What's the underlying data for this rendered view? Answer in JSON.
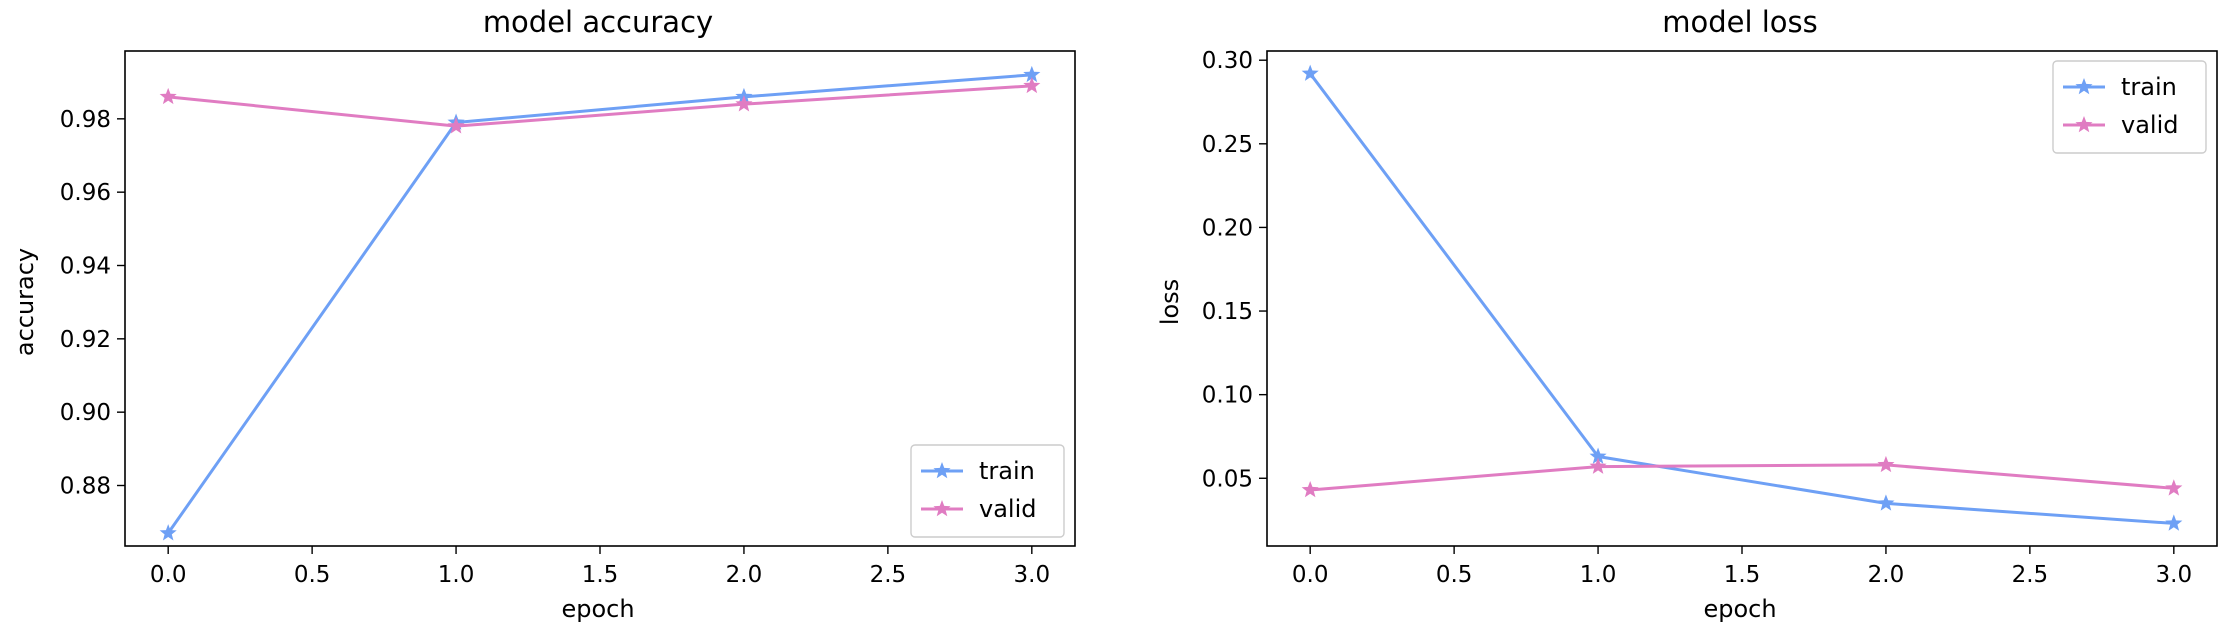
{
  "chart_data": [
    {
      "type": "line",
      "title": "model accuracy",
      "xlabel": "epoch",
      "ylabel": "accuracy",
      "x": [
        0,
        1,
        2,
        3
      ],
      "xlim": [
        -0.15,
        3.15
      ],
      "ylim": [
        0.8635,
        0.9985
      ],
      "xticks": [
        0.0,
        0.5,
        1.0,
        1.5,
        2.0,
        2.5,
        3.0
      ],
      "xtick_labels": [
        "0.0",
        "0.5",
        "1.0",
        "1.5",
        "2.0",
        "2.5",
        "3.0"
      ],
      "yticks": [
        0.88,
        0.9,
        0.92,
        0.94,
        0.96,
        0.98
      ],
      "ytick_labels": [
        "0.88",
        "0.90",
        "0.92",
        "0.94",
        "0.96",
        "0.98"
      ],
      "grid": false,
      "legend_position": "lower right",
      "series": [
        {
          "name": "train",
          "values": [
            0.867,
            0.979,
            0.986,
            0.992
          ],
          "color": "#6ea0f5",
          "marker": "star"
        },
        {
          "name": "valid",
          "values": [
            0.986,
            0.978,
            0.984,
            0.989
          ],
          "color": "#e07cc2",
          "marker": "star"
        }
      ]
    },
    {
      "type": "line",
      "title": "model loss",
      "xlabel": "epoch",
      "ylabel": "loss",
      "x": [
        0,
        1,
        2,
        3
      ],
      "xlim": [
        -0.15,
        3.15
      ],
      "ylim": [
        0.0095,
        0.3055
      ],
      "xticks": [
        0.0,
        0.5,
        1.0,
        1.5,
        2.0,
        2.5,
        3.0
      ],
      "xtick_labels": [
        "0.0",
        "0.5",
        "1.0",
        "1.5",
        "2.0",
        "2.5",
        "3.0"
      ],
      "yticks": [
        0.05,
        0.1,
        0.15,
        0.2,
        0.25,
        0.3
      ],
      "ytick_labels": [
        "0.05",
        "0.10",
        "0.15",
        "0.20",
        "0.25",
        "0.30"
      ],
      "grid": false,
      "legend_position": "upper right",
      "series": [
        {
          "name": "train",
          "values": [
            0.292,
            0.063,
            0.035,
            0.023
          ],
          "color": "#6ea0f5",
          "marker": "star"
        },
        {
          "name": "valid",
          "values": [
            0.043,
            0.057,
            0.058,
            0.044
          ],
          "color": "#e07cc2",
          "marker": "star"
        }
      ]
    }
  ]
}
